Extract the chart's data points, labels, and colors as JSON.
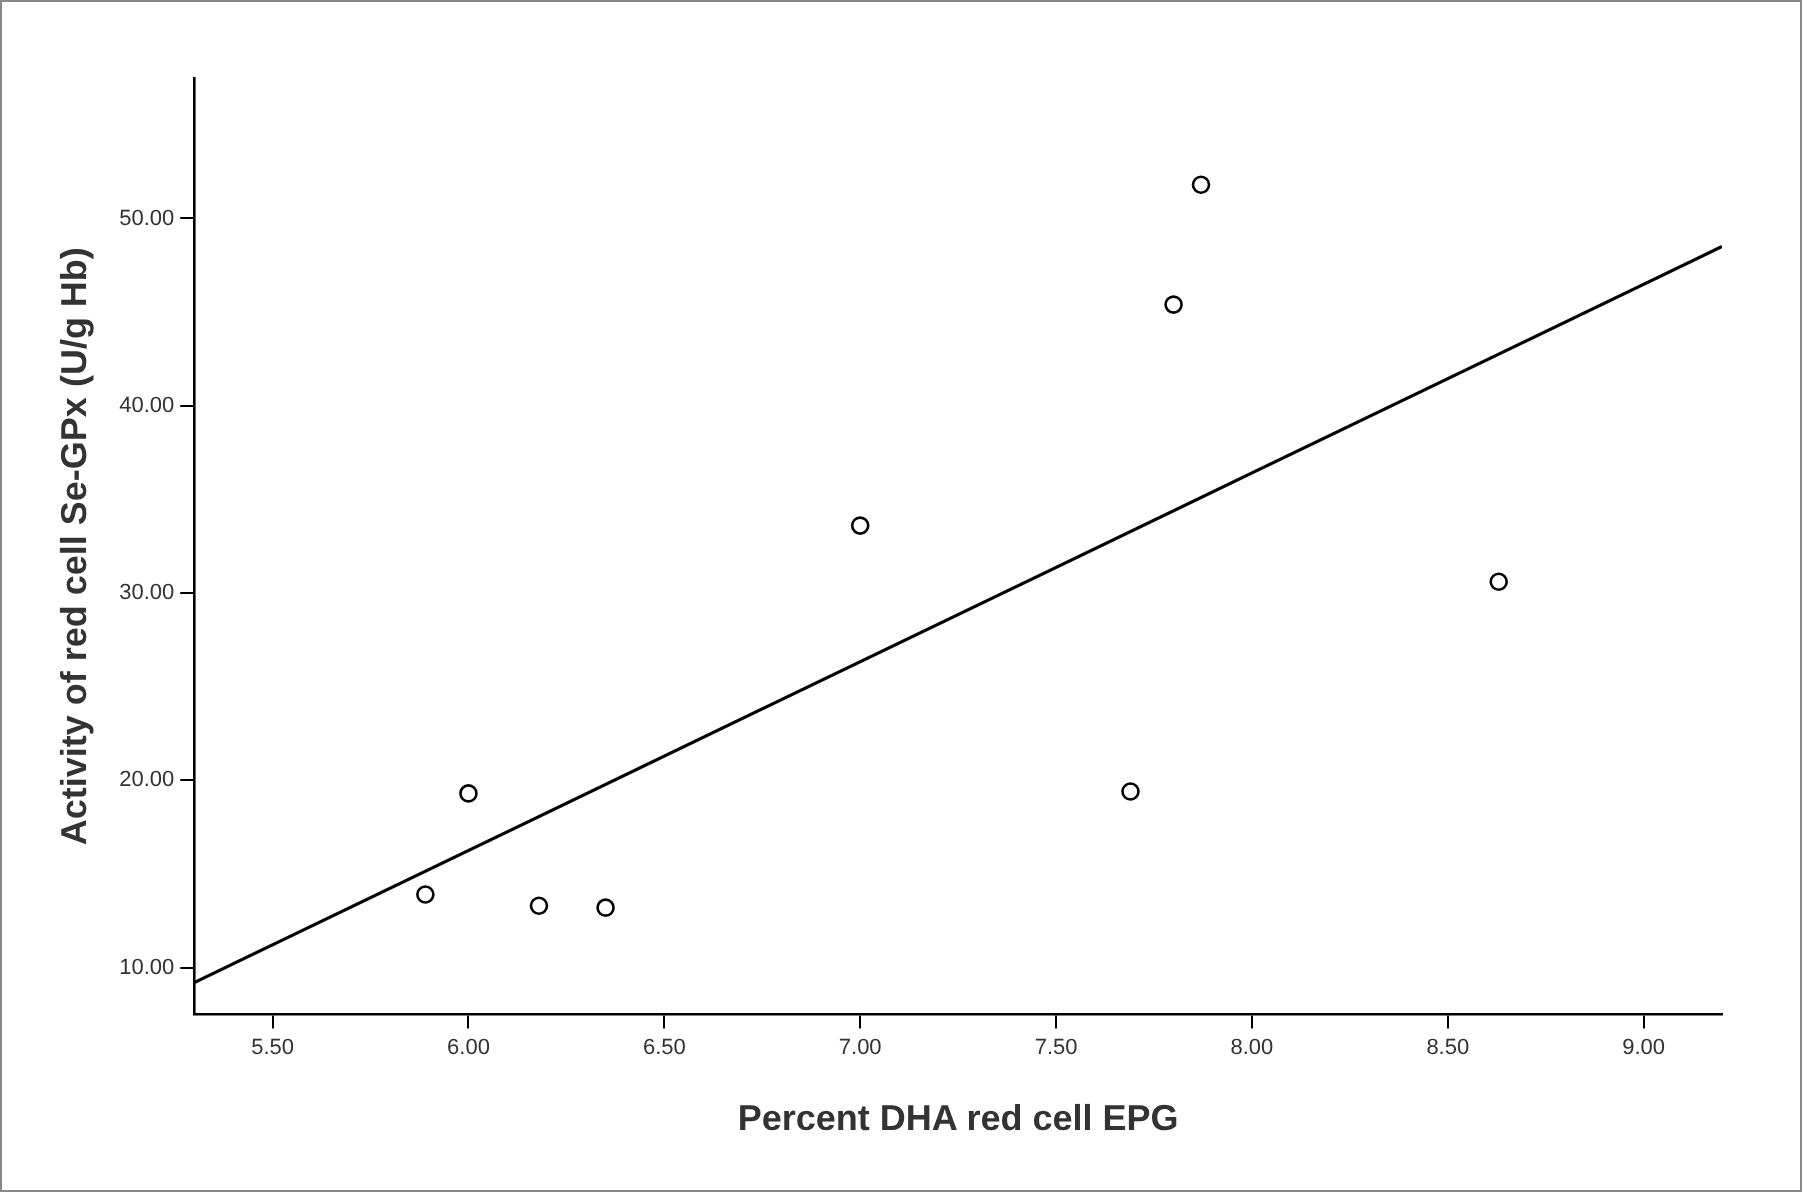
{
  "chart_data": {
    "type": "scatter",
    "xlabel": "Percent DHA red cell EPG",
    "ylabel": "Activity of red cell Se-GPx (U/g Hb)",
    "xlim": [
      5.3,
      9.2
    ],
    "ylim": [
      7.5,
      57.5
    ],
    "xticks": [
      {
        "value": 5.5,
        "label": "5.50"
      },
      {
        "value": 6,
        "label": "6.00"
      },
      {
        "value": 6.5,
        "label": "6.50"
      },
      {
        "value": 7,
        "label": "7.00"
      },
      {
        "value": 7.5,
        "label": "7.50"
      },
      {
        "value": 8,
        "label": "8.00"
      },
      {
        "value": 8.5,
        "label": "8.50"
      },
      {
        "value": 9,
        "label": "9.00"
      }
    ],
    "yticks": [
      {
        "value": 10,
        "label": "10.00"
      },
      {
        "value": 20,
        "label": "20.00"
      },
      {
        "value": 30,
        "label": "30.00"
      },
      {
        "value": 40,
        "label": "40.00"
      },
      {
        "value": 50,
        "label": "50.00"
      }
    ],
    "grid": false,
    "legend": false,
    "series": [
      {
        "color": "#000000",
        "marker": "circle",
        "x": [
          5.89,
          6.0,
          6.18,
          6.35,
          7.0,
          7.69,
          7.8,
          7.87,
          8.63
        ],
        "values": [
          13.9,
          19.3,
          13.3,
          13.2,
          33.6,
          19.4,
          45.4,
          51.8,
          30.6
        ]
      },
      {
        "type": "line",
        "marker": "none",
        "color": "#000000",
        "x": [
          5.3,
          9.2
        ],
        "values": [
          9.2,
          48.5
        ]
      }
    ]
  }
}
